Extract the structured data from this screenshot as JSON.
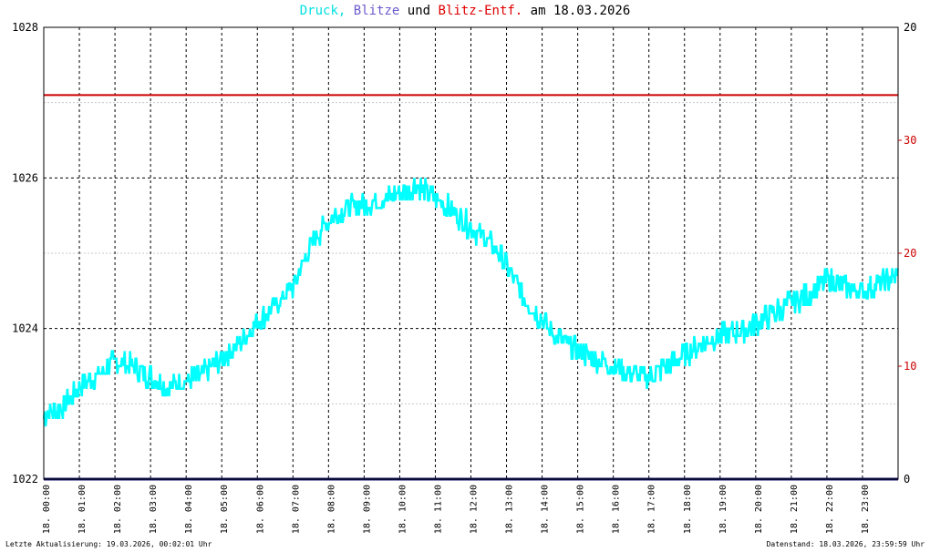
{
  "title": {
    "part_druck": "Druck,",
    "part_blitze": "Blitze",
    "part_und": "und",
    "part_entf": "Blitz-Entf.",
    "part_date": "am 18.03.2026"
  },
  "footer": {
    "left": "Letzte Aktualisierung: 19.03.2026, 00:02:01 Uhr",
    "right": "Datenstand: 18.03.2026, 23:59:59 Uhr"
  },
  "colors": {
    "druck": "#00ffff",
    "blitze": "#191970",
    "entf": "#cc0000",
    "title_druck": "#00e0e0",
    "title_blitze": "#6a5acd",
    "title_entf": "#e00000",
    "grid": "#000000",
    "grid_minor": "#c8c8c8"
  },
  "chart_data": {
    "type": "line",
    "x_ticks": [
      "18. 00:00",
      "18. 01:00",
      "18. 02:00",
      "18. 03:00",
      "18. 04:00",
      "18. 05:00",
      "18. 06:00",
      "18. 07:00",
      "18. 08:00",
      "18. 09:00",
      "18. 10:00",
      "18. 11:00",
      "18. 12:00",
      "18. 13:00",
      "18. 14:00",
      "18. 15:00",
      "18. 16:00",
      "18. 17:00",
      "18. 18:00",
      "18. 19:00",
      "18. 20:00",
      "18. 21:00",
      "18. 22:00",
      "18. 23:00"
    ],
    "x_range_hours": [
      0,
      24
    ],
    "y_left": {
      "min": 1022,
      "max": 1028,
      "ticks": [
        "1022",
        "1024",
        "1026",
        "1028"
      ]
    },
    "y_right_black": {
      "ticks": [
        "0",
        "20"
      ]
    },
    "y_right_red": {
      "ticks": [
        "10",
        "20",
        "30"
      ]
    },
    "grid": true,
    "series": [
      {
        "name": "Druck",
        "axis": "left",
        "unit_hours": true,
        "x": [
          0,
          0.5,
          1,
          1.5,
          2,
          2.5,
          3,
          3.5,
          4,
          4.5,
          5,
          5.5,
          6,
          6.5,
          7,
          7.5,
          8,
          8.5,
          9,
          9.5,
          10,
          10.5,
          11,
          11.5,
          12,
          12.5,
          13,
          13.5,
          14,
          14.5,
          15,
          15.5,
          16,
          16.5,
          17,
          17.5,
          18,
          18.5,
          19,
          19.5,
          20,
          20.5,
          21,
          21.5,
          22,
          22.5,
          23,
          23.5,
          23.99
        ],
        "y": [
          1022.85,
          1022.95,
          1023.2,
          1023.4,
          1023.55,
          1023.5,
          1023.35,
          1023.25,
          1023.3,
          1023.4,
          1023.6,
          1023.8,
          1024.1,
          1024.3,
          1024.55,
          1025.1,
          1025.45,
          1025.6,
          1025.65,
          1025.7,
          1025.8,
          1025.9,
          1025.75,
          1025.55,
          1025.35,
          1025.15,
          1024.85,
          1024.4,
          1024.1,
          1023.85,
          1023.7,
          1023.6,
          1023.5,
          1023.4,
          1023.35,
          1023.5,
          1023.65,
          1023.8,
          1023.9,
          1023.95,
          1024.05,
          1024.2,
          1024.35,
          1024.45,
          1024.65,
          1024.55,
          1024.5,
          1024.6,
          1024.7
        ],
        "noise_amplitude": 0.15
      },
      {
        "name": "Blitz-Entf.",
        "axis": "left",
        "x": [
          0,
          24
        ],
        "y": [
          1027.1,
          1027.1
        ]
      },
      {
        "name": "Blitze",
        "axis": "left",
        "x": [
          0,
          24
        ],
        "y": [
          1022,
          1022
        ]
      }
    ]
  }
}
